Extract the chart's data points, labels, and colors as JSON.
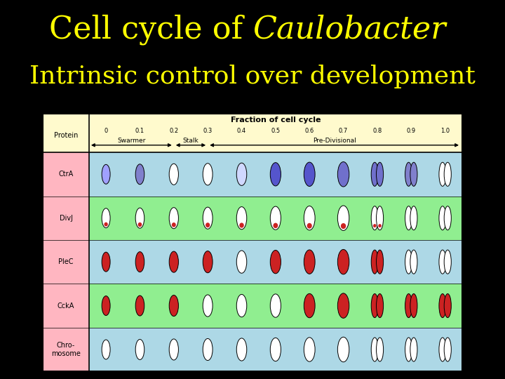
{
  "background_color": "#000000",
  "title_line1": "Cell cycle of ",
  "title_italic": "Caulobacter",
  "title_line2": "Intrinsic control over development",
  "title_color": "#ffff00",
  "title_fontsize": 32,
  "subtitle_fontsize": 26,
  "figsize": [
    7.2,
    5.4
  ],
  "dpi": 100,
  "table_bg_outer": "#fffacd",
  "table_bg_row1": "#add8e6",
  "table_bg_row2": "#90ee90",
  "table_bg_row3": "#add8e6",
  "table_bg_row4": "#90ee90",
  "table_bg_row5": "#add8e6",
  "table_left_col": "#ffb6c1",
  "fractions": [
    "0",
    "0.1",
    "0.2",
    "0.3",
    "0.4",
    "0.5",
    "0.6",
    "0.7",
    "0.8",
    "0.9",
    "1.0"
  ],
  "proteins": [
    "CtrA",
    "DivJ",
    "PleC",
    "CckA",
    "Chro-\nmosome"
  ],
  "ctra_colors": [
    "#a0a0ff",
    "#8080cc",
    "#ffffff",
    "#ffffff",
    "#d0d8ff",
    "#5555cc",
    "#5555cc",
    "#7070cc",
    "#7070cc",
    "#8080cc",
    "#ffffff"
  ],
  "divj_bottom": [
    "#cc2222",
    "#cc2222",
    "#cc2222",
    "#cc2222",
    "#cc2222",
    "#cc2222",
    "#cc2222",
    "#cc2222",
    "#cc2222",
    null,
    null
  ],
  "plec_colors": [
    "#cc2222",
    "#cc2222",
    "#cc2222",
    "#cc2222",
    "#ffffff",
    "#cc2222",
    "#cc2222",
    "#cc2222",
    "#cc2222",
    "#ffffff",
    "#ffffff"
  ],
  "ccka_colors": [
    "#cc2222",
    "#cc2222",
    "#cc2222",
    "#ffffff",
    "#ffffff",
    "#ffffff",
    "#cc2222",
    "#cc2222",
    "#cc2222",
    "#cc2222",
    "#cc2222"
  ]
}
